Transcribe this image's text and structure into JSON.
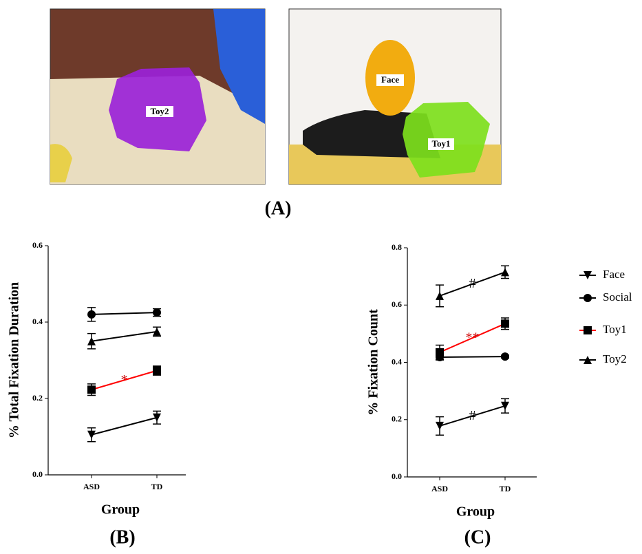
{
  "panel_a": {
    "labels": [
      "Toy2",
      "Face",
      "Toy1"
    ],
    "caption": "(A)"
  },
  "chart_data": [
    {
      "type": "line",
      "caption": "(B)",
      "y_label": "% Total Fixation Duration",
      "x_label": "Group",
      "categories": [
        "ASD",
        "TD"
      ],
      "ylim": [
        0,
        0.6
      ],
      "yticks": [
        {
          "value": 0,
          "label": "0.0"
        },
        0.2,
        0.4,
        0.6
      ],
      "legend": false,
      "series": [
        {
          "name": "Face",
          "marker": "triangle-down",
          "color": "#000000",
          "values": [
            0.105,
            0.15
          ],
          "errors": [
            0.018,
            0.017
          ]
        },
        {
          "name": "Social",
          "marker": "circle",
          "color": "#000000",
          "values": [
            0.42,
            0.425
          ],
          "errors": [
            0.018,
            0.01
          ]
        },
        {
          "name": "Toy1",
          "marker": "square",
          "color": "#000000",
          "line_color": "#ff0000",
          "values": [
            0.223,
            0.273
          ],
          "errors": [
            0.015,
            0.012
          ],
          "annotation": "*"
        },
        {
          "name": "Toy2",
          "marker": "triangle",
          "color": "#000000",
          "values": [
            0.35,
            0.375
          ],
          "errors": [
            0.02,
            0.012
          ]
        }
      ]
    },
    {
      "type": "line",
      "caption": "(C)",
      "y_label": "% Fixation Count",
      "x_label": "Group",
      "categories": [
        "ASD",
        "TD"
      ],
      "ylim": [
        0,
        0.8
      ],
      "yticks": [
        {
          "value": 0,
          "label": "0.0"
        },
        0.2,
        0.4,
        0.6,
        0.8
      ],
      "legend": true,
      "series": [
        {
          "name": "Face",
          "marker": "triangle-down",
          "color": "#000000",
          "values": [
            0.178,
            0.248
          ],
          "errors": [
            0.032,
            0.025
          ],
          "annotation": "#"
        },
        {
          "name": "Social",
          "marker": "circle",
          "color": "#000000",
          "values": [
            0.418,
            0.42
          ],
          "errors": [
            0.01,
            0.005
          ]
        },
        {
          "name": "Toy1",
          "marker": "square",
          "color": "#000000",
          "line_color": "#ff0000",
          "values": [
            0.435,
            0.535
          ],
          "errors": [
            0.025,
            0.02
          ],
          "annotation": "**"
        },
        {
          "name": "Toy2",
          "marker": "triangle",
          "color": "#000000",
          "values": [
            0.632,
            0.715
          ],
          "errors": [
            0.038,
            0.022
          ],
          "annotation": "#"
        }
      ]
    }
  ]
}
